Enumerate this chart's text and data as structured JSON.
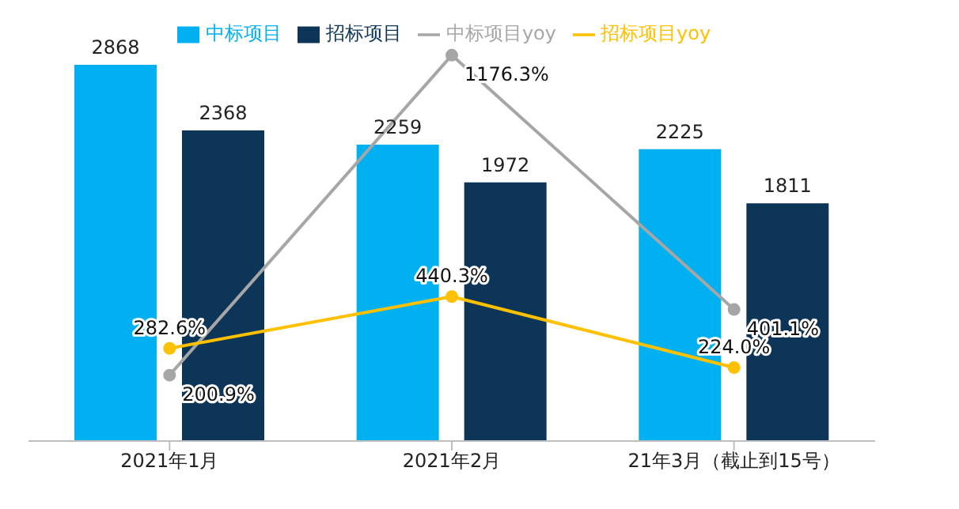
{
  "chart_data": {
    "type": "bar",
    "categories": [
      "2021年1月",
      "2021年2月",
      "21年3月（截止到15号）"
    ],
    "series": [
      {
        "name": "中标项目",
        "color": "#00b0f0",
        "values": [
          2868,
          2259,
          2225
        ],
        "value_labels": [
          "2868",
          "2259",
          "2225"
        ]
      },
      {
        "name": "招标项目",
        "color": "#0d3557",
        "values": [
          2368,
          1972,
          1811
        ],
        "value_labels": [
          "2368",
          "1972",
          "1811"
        ]
      },
      {
        "name": "中标项目yoy",
        "type": "line",
        "axis": "y2",
        "color": "#a6a6a6",
        "values": [
          200.9,
          1176.3,
          401.1
        ],
        "value_labels": [
          "200.9%",
          "1176.3%",
          "401.1%"
        ]
      },
      {
        "name": "招标项目yoy",
        "type": "line",
        "axis": "y2",
        "color": "#ffc000",
        "values": [
          282.6,
          440.3,
          224.0
        ],
        "value_labels": [
          "282.6%",
          "440.3%",
          "224.0%"
        ]
      }
    ],
    "tick_labels": "x",
    "grid": false,
    "legend": "top",
    "marker": "circle"
  }
}
